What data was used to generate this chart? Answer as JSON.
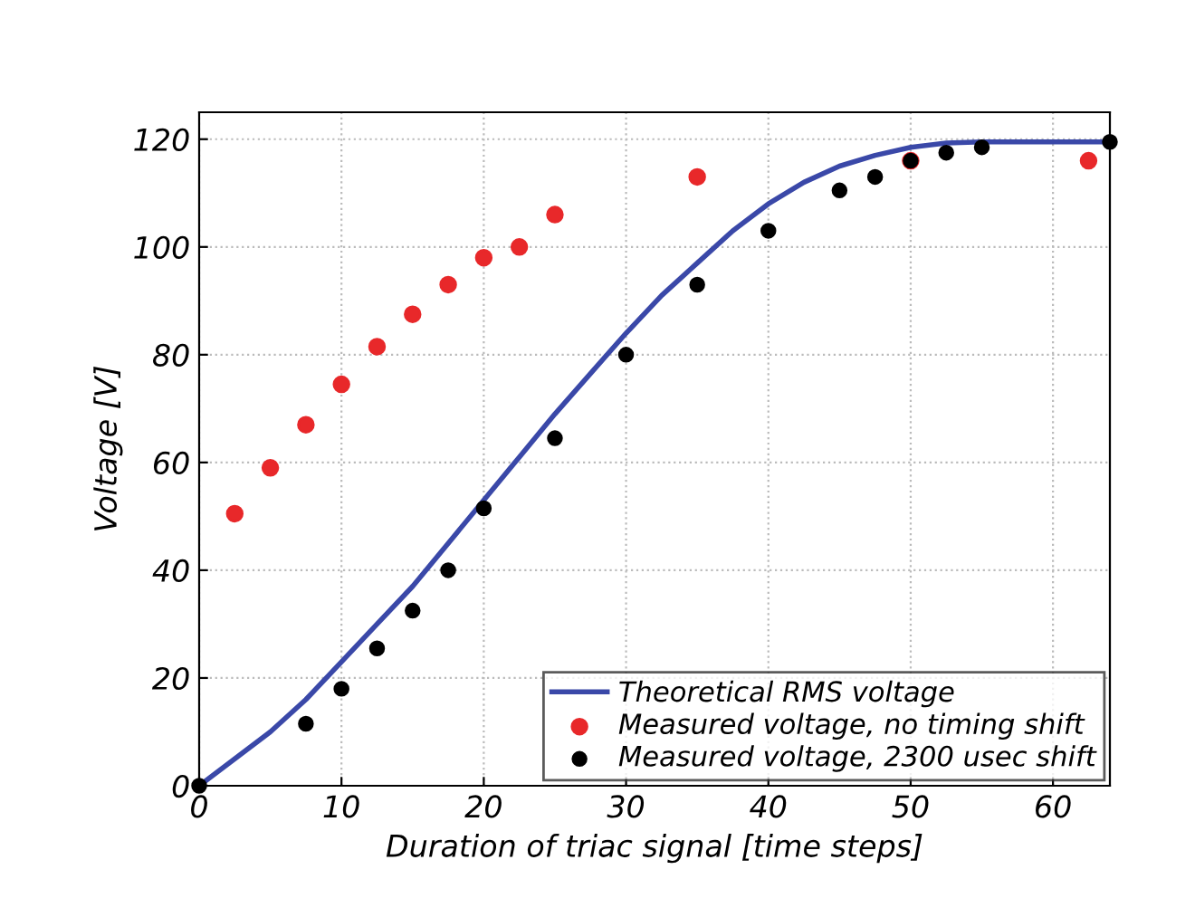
{
  "chart_data": {
    "type": "scatter",
    "xlabel": "Duration of triac signal [time steps]",
    "ylabel": "Voltage [V]",
    "xlim": [
      0,
      64
    ],
    "ylim": [
      0,
      125
    ],
    "xticks": [
      0,
      10,
      20,
      30,
      40,
      50,
      60
    ],
    "yticks": [
      0,
      20,
      40,
      60,
      80,
      100,
      120
    ],
    "grid": true,
    "legend": "bottom right",
    "series": [
      {
        "name": "Theoretical RMS voltage",
        "type": "line",
        "color": "#3a48a8",
        "line_style": "solid",
        "marker": "none",
        "x": [
          0,
          2.5,
          5,
          7.5,
          10,
          12.5,
          15,
          17.5,
          20,
          22.5,
          25,
          27.5,
          30,
          32.5,
          35,
          37.5,
          40,
          42.5,
          45,
          47.5,
          50,
          52.5,
          55,
          57.5,
          60,
          64
        ],
        "values": [
          0,
          5,
          10,
          16,
          23,
          30,
          37,
          45,
          53,
          61,
          69,
          76.5,
          84,
          91,
          97,
          103,
          108,
          112,
          115,
          117,
          118.5,
          119.3,
          119.5,
          119.5,
          119.5,
          119.5
        ]
      },
      {
        "name": "Measured voltage, no timing shift",
        "color": "#e8282a",
        "marker": "circle",
        "x": [
          2.5,
          5,
          7.5,
          10,
          12.5,
          15,
          17.5,
          20,
          22.5,
          25,
          35,
          50,
          62.5
        ],
        "values": [
          50.5,
          59,
          67,
          74.5,
          81.5,
          87.5,
          93,
          98,
          100,
          106,
          113,
          116,
          116
        ]
      },
      {
        "name": "Measured voltage, 2300 usec shift",
        "color": "#000000",
        "marker": "circle",
        "x": [
          0,
          7.5,
          10,
          12.5,
          15,
          17.5,
          20,
          25,
          30,
          35,
          40,
          45,
          47.5,
          50,
          52.5,
          55,
          64
        ],
        "values": [
          0,
          11.5,
          18,
          25.5,
          32.5,
          40,
          51.5,
          64.5,
          80,
          93,
          103,
          110.5,
          113,
          116,
          117.5,
          118.5,
          119.5
        ]
      }
    ]
  }
}
